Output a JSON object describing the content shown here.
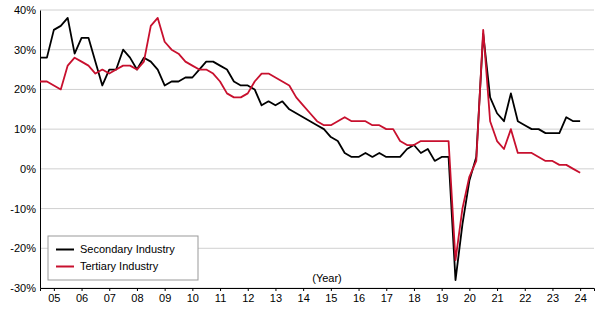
{
  "chart_data": {
    "type": "line",
    "x_label": "(Year)",
    "x": [
      2005,
      2005.25,
      2005.5,
      2005.75,
      2006,
      2006.25,
      2006.5,
      2006.75,
      2007,
      2007.25,
      2007.5,
      2007.75,
      2008,
      2008.25,
      2008.5,
      2008.75,
      2009,
      2009.25,
      2009.5,
      2009.75,
      2010,
      2010.25,
      2010.5,
      2010.75,
      2011,
      2011.25,
      2011.5,
      2011.75,
      2012,
      2012.25,
      2012.5,
      2012.75,
      2013,
      2013.25,
      2013.5,
      2013.75,
      2014,
      2014.25,
      2014.5,
      2014.75,
      2015,
      2015.25,
      2015.5,
      2015.75,
      2016,
      2016.25,
      2016.5,
      2016.75,
      2017,
      2017.25,
      2017.5,
      2017.75,
      2018,
      2018.25,
      2018.5,
      2018.75,
      2019,
      2019.25,
      2019.5,
      2019.75,
      2020,
      2020.25,
      2020.5,
      2020.75,
      2021,
      2021.25,
      2021.5,
      2021.75,
      2022,
      2022.25,
      2022.5,
      2022.75,
      2023,
      2023.25,
      2023.5,
      2023.75,
      2024,
      2024.25,
      2024.5
    ],
    "series": [
      {
        "name": "Secondary Industry",
        "color": "#000000",
        "values": [
          28,
          28,
          35,
          36,
          38,
          29,
          33,
          33,
          27,
          21,
          25,
          25,
          30,
          28,
          25,
          28,
          27,
          25,
          21,
          22,
          22,
          23,
          23,
          25,
          27,
          27,
          26,
          25,
          22,
          21,
          21,
          20,
          16,
          17,
          16,
          17,
          15,
          14,
          13,
          12,
          11,
          10,
          8,
          7,
          4,
          3,
          3,
          4,
          3,
          4,
          3,
          3,
          3,
          5,
          6,
          4,
          5,
          2,
          3,
          3,
          -28,
          -14,
          -3,
          3,
          34,
          18,
          14,
          12,
          19,
          12,
          11,
          10,
          10,
          9,
          9,
          9,
          13,
          12,
          12
        ]
      },
      {
        "name": "Tertiary Industry",
        "color": "#c8102e",
        "values": [
          22,
          22,
          21,
          20,
          26,
          28,
          27,
          26,
          24,
          25,
          24,
          25,
          26,
          26,
          25,
          27,
          36,
          38,
          32,
          30,
          29,
          27,
          26,
          25,
          25,
          24,
          22,
          19,
          18,
          18,
          19,
          22,
          24,
          24,
          23,
          22,
          21,
          18,
          16,
          14,
          12,
          11,
          11,
          12,
          13,
          12,
          12,
          12,
          11,
          11,
          10,
          10,
          7,
          6,
          6,
          7,
          7,
          7,
          7,
          7,
          -23,
          -10,
          -2,
          2,
          35,
          12,
          7,
          5,
          10,
          4,
          4,
          4,
          3,
          2,
          2,
          1,
          1,
          0,
          -1
        ]
      }
    ],
    "xlim": [
      2005,
      2025
    ],
    "xticks": [
      {
        "value": 2005.5,
        "label": "05"
      },
      {
        "value": 2006.5,
        "label": "06"
      },
      {
        "value": 2007.5,
        "label": "07"
      },
      {
        "value": 2008.5,
        "label": "08"
      },
      {
        "value": 2009.5,
        "label": "09"
      },
      {
        "value": 2010.5,
        "label": "10"
      },
      {
        "value": 2011.5,
        "label": "11"
      },
      {
        "value": 2012.5,
        "label": "12"
      },
      {
        "value": 2013.5,
        "label": "13"
      },
      {
        "value": 2014.5,
        "label": "14"
      },
      {
        "value": 2015.5,
        "label": "15"
      },
      {
        "value": 2016.5,
        "label": "16"
      },
      {
        "value": 2017.5,
        "label": "17"
      },
      {
        "value": 2018.5,
        "label": "18"
      },
      {
        "value": 2019.5,
        "label": "19"
      },
      {
        "value": 2020.5,
        "label": "20"
      },
      {
        "value": 2021.5,
        "label": "21"
      },
      {
        "value": 2022.5,
        "label": "22"
      },
      {
        "value": 2023.5,
        "label": "23"
      },
      {
        "value": 2024.5,
        "label": "24"
      }
    ],
    "ylim": [
      -30,
      40
    ],
    "yticks": [
      {
        "value": -30,
        "label": "-30%"
      },
      {
        "value": -20,
        "label": "-20%"
      },
      {
        "value": -10,
        "label": "-10%"
      },
      {
        "value": 0,
        "label": "0%"
      },
      {
        "value": 10,
        "label": "10%"
      },
      {
        "value": 20,
        "label": "20%"
      },
      {
        "value": 30,
        "label": "30%"
      },
      {
        "value": 40,
        "label": "40%"
      }
    ],
    "grid": true,
    "legend": "lower left"
  }
}
